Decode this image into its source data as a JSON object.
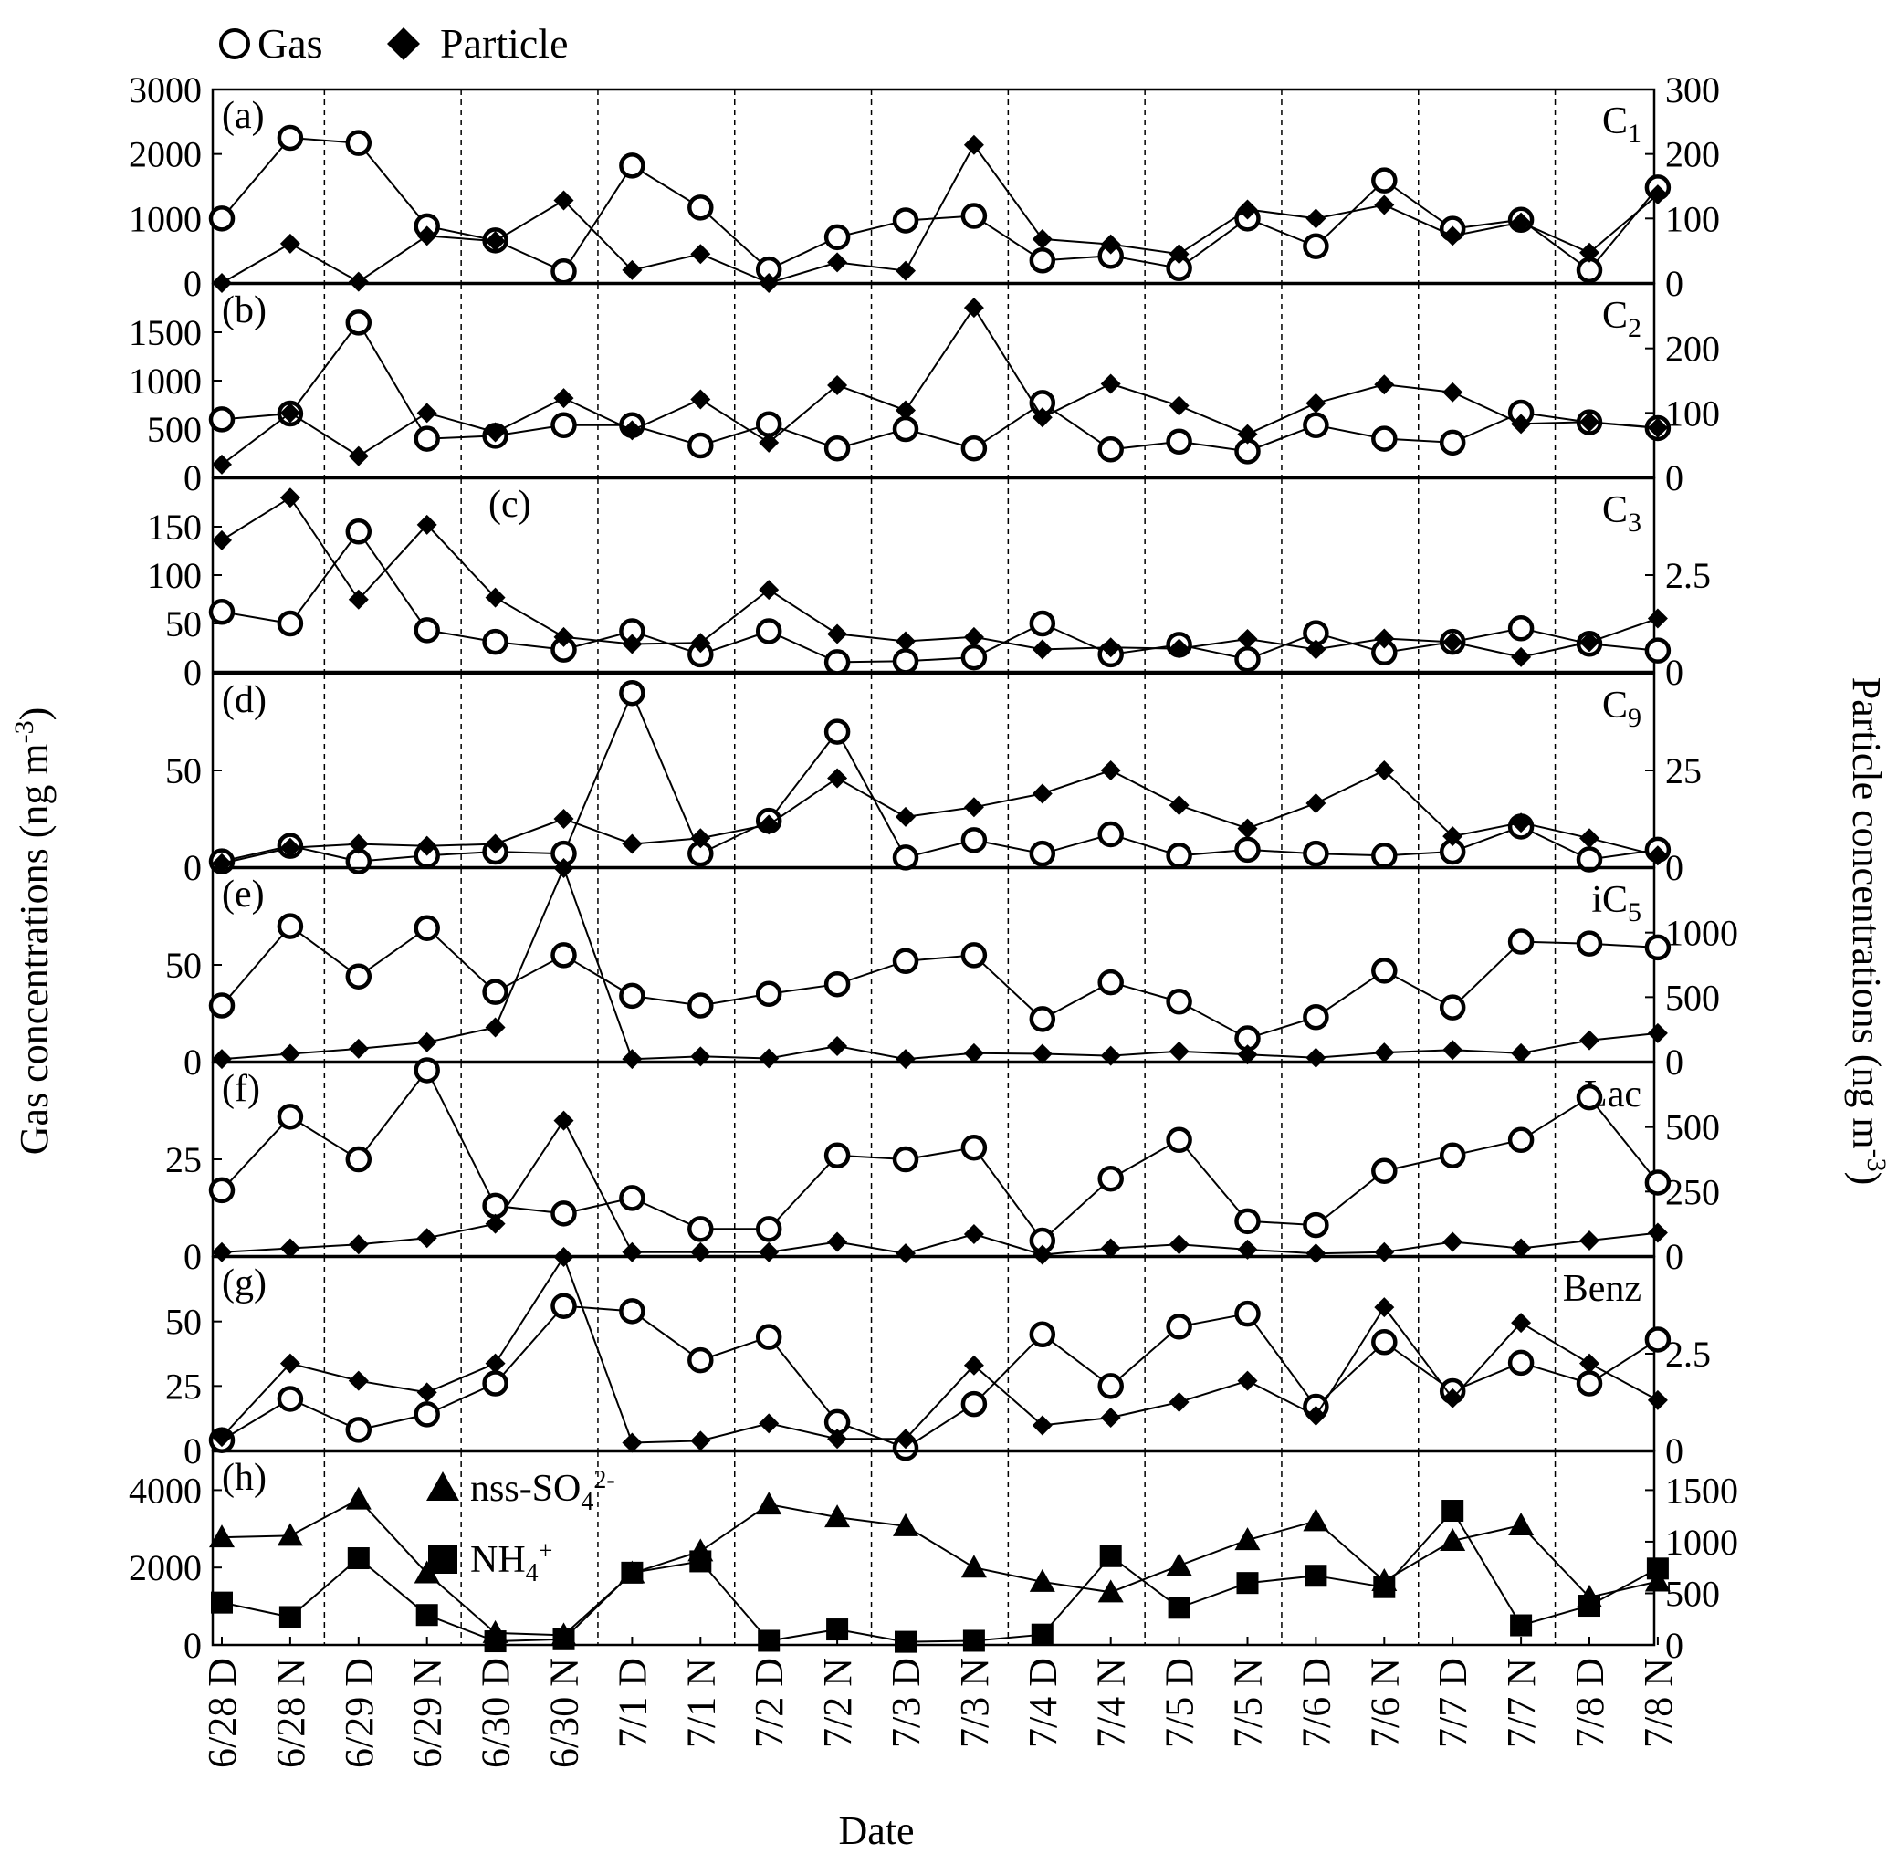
{
  "chart_data": {
    "type": "line",
    "legend": {
      "placement": "top-left",
      "items": [
        "Gas",
        "Particle"
      ]
    },
    "x_label": "Date",
    "y_left_label": "Gas concentrations (ng m-3)",
    "y_right_label": "Particle concentrations (ng m-3)",
    "categories": [
      "6/28 D",
      "6/28 N",
      "6/29 D",
      "6/29 N",
      "6/30 D",
      "6/30 N",
      "7/1 D",
      "7/1 N",
      "7/2 D",
      "7/2 N",
      "7/3 D",
      "7/3 N",
      "7/4 D",
      "7/4 N",
      "7/5 D",
      "7/5 N",
      "7/6 D",
      "7/6 N",
      "7/7 D",
      "7/7 N",
      "7/8 D",
      "7/8 N"
    ],
    "day_separators_after_index": [
      1,
      3,
      5,
      7,
      9,
      11,
      13,
      15,
      17,
      19
    ],
    "panels": [
      {
        "id": "a",
        "label": "(a)",
        "compound": "C1",
        "left_ylim": [
          0,
          3000
        ],
        "left_ticks": [
          0,
          1000,
          2000,
          3000
        ],
        "right_ylim": [
          0,
          300
        ],
        "right_ticks": [
          0,
          100,
          200,
          300
        ],
        "series": [
          {
            "name": "Gas",
            "axis": "left",
            "marker": "open-circle",
            "values": [
              1000,
              2250,
              2170,
              880,
              660,
              180,
              1820,
              1170,
              210,
              710,
              970,
              1040,
              350,
              420,
              230,
              1000,
              570,
              1590,
              840,
              980,
              200,
              1480
            ]
          },
          {
            "name": "Particle",
            "axis": "right",
            "marker": "diamond",
            "values": [
              0,
              61,
              2,
              73,
              65,
              128,
              20,
              45,
              0,
              32,
              19,
              214,
              68,
              60,
              45,
              114,
              100,
              121,
              73,
              94,
              47,
              137
            ]
          }
        ]
      },
      {
        "id": "b",
        "label": "(b)",
        "compound": "C2",
        "left_ylim": [
          0,
          2000
        ],
        "left_ticks": [
          0,
          500,
          1000,
          1500
        ],
        "right_ylim": [
          0,
          300
        ],
        "right_ticks": [
          0,
          100,
          200
        ],
        "series": [
          {
            "name": "Gas",
            "axis": "left",
            "marker": "open-circle",
            "values": [
              600,
              660,
              1600,
              400,
              430,
              540,
              540,
              330,
              550,
              300,
              500,
              300,
              770,
              290,
              370,
              270,
              540,
              400,
              360,
              670,
              570,
              510
            ]
          },
          {
            "name": "Particle",
            "axis": "right",
            "marker": "diamond",
            "values": [
              20,
              100,
              33,
              100,
              70,
              123,
              73,
              121,
              54,
              143,
              104,
              263,
              93,
              145,
              111,
              67,
              115,
              144,
              132,
              83,
              86,
              77
            ]
          }
        ]
      },
      {
        "id": "c",
        "label": "(c)",
        "compound": "C3",
        "left_ylim": [
          0,
          200
        ],
        "left_ticks": [
          0,
          50,
          100,
          150
        ],
        "right_ylim": [
          0,
          5
        ],
        "right_ticks": [
          0,
          2.5
        ],
        "series": [
          {
            "name": "Gas",
            "axis": "left",
            "marker": "open-circle",
            "values": [
              62,
              50,
              145,
              43,
              31,
              23,
              42,
              18,
              42,
              10,
              11,
              15,
              50,
              18,
              28,
              13,
              40,
              20,
              31,
              45,
              29,
              22
            ]
          },
          {
            "name": "Particle",
            "axis": "right",
            "marker": "diamond",
            "values": [
              3.4,
              4.5,
              1.87,
              3.8,
              1.92,
              0.9,
              0.72,
              0.75,
              2.12,
              0.98,
              0.79,
              0.9,
              0.58,
              0.63,
              0.6,
              0.85,
              0.58,
              0.86,
              0.77,
              0.38,
              0.77,
              1.38
            ]
          }
        ]
      },
      {
        "id": "d",
        "label": "(d)",
        "compound": "C9",
        "left_ylim": [
          0,
          100
        ],
        "left_ticks": [
          0,
          50
        ],
        "right_ylim": [
          0,
          50
        ],
        "right_ticks": [
          0,
          25
        ],
        "series": [
          {
            "name": "Gas",
            "axis": "left",
            "marker": "open-circle",
            "values": [
              3,
              11,
              3,
              6,
              8,
              7,
              90,
              7,
              24,
              70,
              5,
              14,
              7,
              17,
              6,
              9,
              7,
              6,
              8,
              21,
              4,
              9
            ]
          },
          {
            "name": "Particle",
            "axis": "right",
            "marker": "diamond",
            "values": [
              1,
              5,
              6,
              5.5,
              6,
              12.5,
              6,
              7.5,
              11,
              23,
              13,
              15.5,
              19,
              25,
              16,
              10,
              16.5,
              25,
              8,
              11.5,
              7.5,
              3
            ]
          }
        ]
      },
      {
        "id": "e",
        "label": "(e)",
        "compound": "iC5",
        "left_ylim": [
          0,
          100
        ],
        "left_ticks": [
          0,
          50
        ],
        "right_ylim": [
          0,
          1500
        ],
        "right_ticks": [
          0,
          500,
          1000
        ],
        "series": [
          {
            "name": "Gas",
            "axis": "left",
            "marker": "open-circle",
            "values": [
              29,
              70,
              44,
              69,
              36,
              55,
              34,
              29,
              35,
              40,
              52,
              55,
              22,
              41,
              31,
              12,
              23,
              47,
              28,
              62,
              61,
              59
            ]
          },
          {
            "name": "Particle",
            "axis": "right",
            "marker": "diamond",
            "values": [
              20,
              60,
              100,
              150,
              265,
              1500,
              20,
              40,
              25,
              120,
              20,
              65,
              60,
              45,
              80,
              55,
              30,
              70,
              90,
              65,
              165,
              220
            ]
          }
        ]
      },
      {
        "id": "f",
        "label": "(f)",
        "compound": "Lac",
        "left_ylim": [
          0,
          50
        ],
        "left_ticks": [
          0,
          25
        ],
        "right_ylim": [
          0,
          750
        ],
        "right_ticks": [
          0,
          250,
          500
        ],
        "series": [
          {
            "name": "Gas",
            "axis": "left",
            "marker": "open-circle",
            "values": [
              17,
              36,
              25,
              48,
              13,
              11,
              15,
              7,
              7,
              26,
              25,
              28,
              4,
              20,
              30,
              9,
              8,
              22,
              26,
              30,
              41,
              19
            ]
          },
          {
            "name": "Particle",
            "axis": "right",
            "marker": "diamond",
            "values": [
              15,
              30,
              45,
              70,
              125,
              525,
              15,
              15,
              15,
              55,
              10,
              85,
              5,
              30,
              45,
              25,
              10,
              15,
              55,
              30,
              60,
              90
            ]
          }
        ]
      },
      {
        "id": "g",
        "label": "(g)",
        "compound": "Benz",
        "left_ylim": [
          0,
          75
        ],
        "left_ticks": [
          0,
          25,
          50
        ],
        "right_ylim": [
          0,
          5
        ],
        "right_ticks": [
          0,
          2.5
        ],
        "series": [
          {
            "name": "Gas",
            "axis": "left",
            "marker": "open-circle",
            "values": [
              4,
              20,
              8,
              14,
              26,
              56,
              54,
              35,
              44,
              11,
              1,
              18,
              45,
              25,
              48,
              53,
              17,
              42,
              23,
              34,
              26,
              43
            ]
          },
          {
            "name": "Particle",
            "axis": "right",
            "marker": "diamond",
            "values": [
              0.35,
              2.25,
              1.8,
              1.5,
              2.25,
              5,
              0.2,
              0.25,
              0.7,
              0.3,
              0.3,
              2.2,
              0.65,
              0.85,
              1.25,
              1.8,
              0.9,
              3.7,
              1.35,
              3.3,
              2.25,
              1.3
            ]
          }
        ]
      },
      {
        "id": "h",
        "label": "(h)",
        "compound": "",
        "left_ylim": [
          0,
          5000
        ],
        "left_ticks": [
          0,
          2000,
          4000
        ],
        "right_ylim": [
          0,
          1875
        ],
        "right_ticks": [
          0,
          500,
          1000,
          1500
        ],
        "series": [
          {
            "name": "nss-SO4 2-",
            "axis": "left",
            "marker": "triangle",
            "values": [
              2780,
              2820,
              3760,
              1850,
              310,
              250,
              1850,
              2420,
              3630,
              3300,
              3070,
              2000,
              1630,
              1360,
              2050,
              2710,
              3200,
              1650,
              2690,
              3090,
              1230,
              1640
            ]
          },
          {
            "name": "NH4 +",
            "axis": "right",
            "marker": "square",
            "values": [
              410,
              270,
              840,
              290,
              35,
              55,
              700,
              810,
              40,
              150,
              30,
              40,
              100,
              860,
              360,
              600,
              670,
              560,
              1300,
              190,
              380,
              740
            ]
          }
        ]
      }
    ]
  },
  "panel_h_legend": [
    {
      "marker": "triangle",
      "base": "nss-SO",
      "sub": "4",
      "sup": "2-"
    },
    {
      "marker": "square",
      "base": "NH",
      "sub": "4",
      "sup": "+"
    }
  ]
}
